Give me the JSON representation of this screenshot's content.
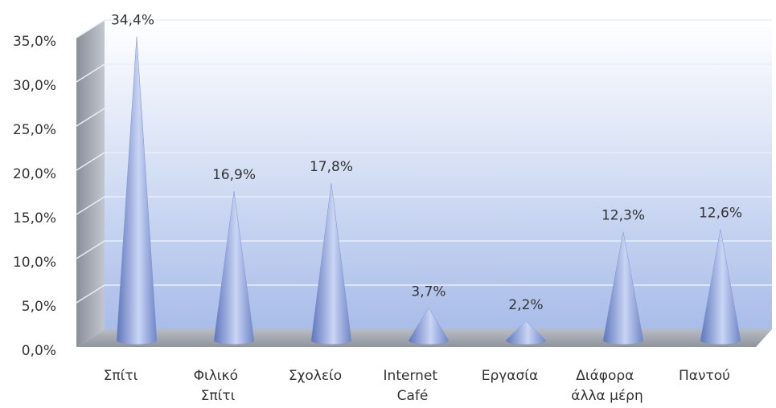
{
  "chart_data": {
    "type": "cone",
    "categories": [
      "Σπίτι",
      "Φιλικό Σπίτι",
      "Σχολείο",
      "Internet Café",
      "Εργασία",
      "Διάφορα άλλα μέρη",
      "Παντού"
    ],
    "values": [
      34.4,
      16.9,
      17.8,
      3.7,
      2.2,
      12.3,
      12.6
    ],
    "value_labels": [
      "34,4%",
      "16,9%",
      "17,8%",
      "3,7%",
      "2,2%",
      "12,3%",
      "12,6%"
    ],
    "color": "#7f95d3",
    "ylim": [
      0,
      35
    ],
    "yticks": [
      {
        "value": 0,
        "label": "0,0%"
      },
      {
        "value": 5,
        "label": "5,0%"
      },
      {
        "value": 10,
        "label": "10,0%"
      },
      {
        "value": 15,
        "label": "15,0%"
      },
      {
        "value": 20,
        "label": "20,0%"
      },
      {
        "value": 25,
        "label": "25,0%"
      },
      {
        "value": 30,
        "label": "30,0%"
      },
      {
        "value": 35,
        "label": "35,0%"
      }
    ],
    "grid": true
  }
}
